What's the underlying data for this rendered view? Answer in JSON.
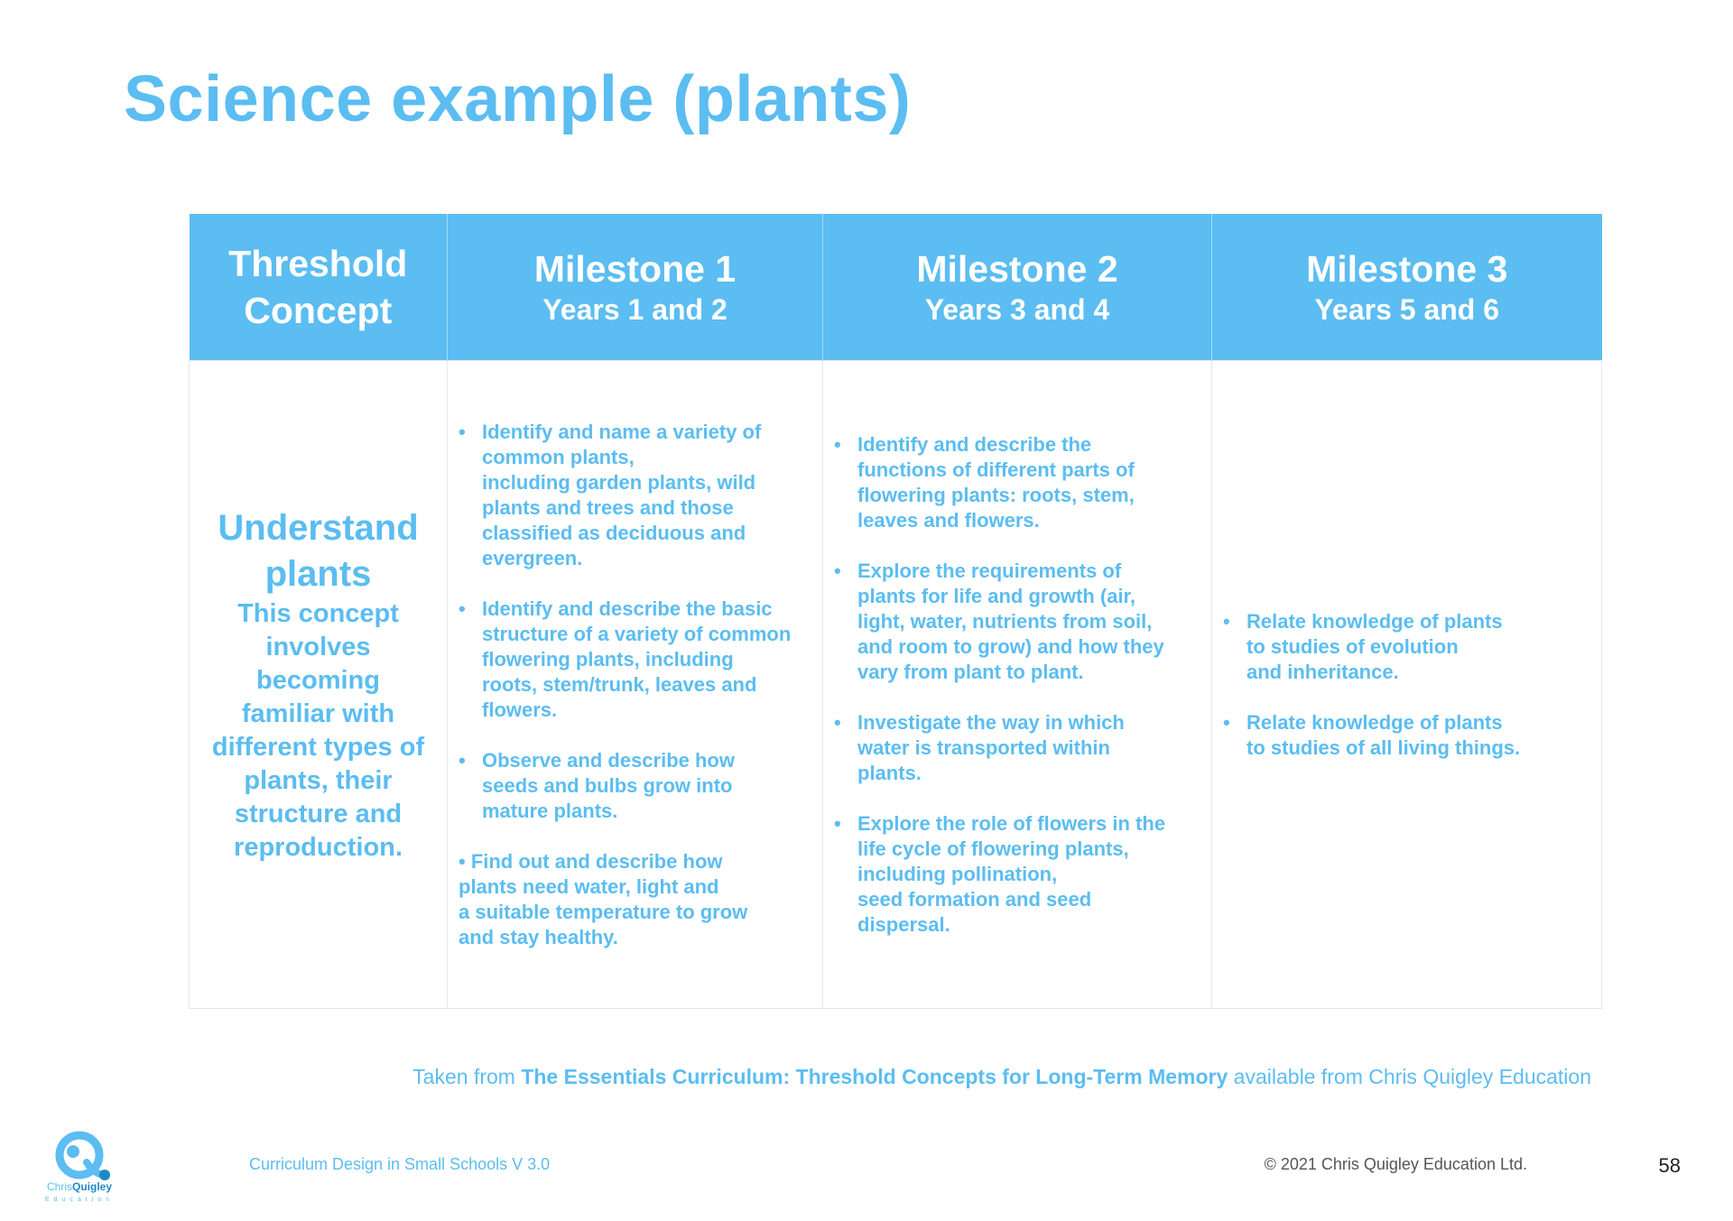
{
  "title": "Science example (plants)",
  "table": {
    "headers": [
      {
        "main": "Threshold",
        "main2": "Concept"
      },
      {
        "main": "Milestone 1",
        "sub": "Years 1 and 2"
      },
      {
        "main": "Milestone 2",
        "sub": "Years 3 and 4"
      },
      {
        "main": "Milestone 3",
        "sub": "Years 5 and 6"
      }
    ],
    "concept": {
      "title_line1": "Understand",
      "title_line2": "plants",
      "desc": [
        "This concept",
        "involves",
        "becoming",
        "familiar with",
        "different types of",
        "plants, their",
        "structure and",
        "reproduction."
      ]
    },
    "milestone1": [
      {
        "bullet": "•",
        "lines": [
          "Identify and name a variety of",
          "common plants,",
          "including garden plants, wild",
          "plants and trees and those",
          "classified as deciduous and",
          "evergreen."
        ]
      },
      {
        "bullet": "•",
        "lines": [
          "Identify and describe the basic",
          "structure of a variety of common",
          "flowering plants, including",
          "roots, stem/trunk, leaves and",
          "flowers."
        ]
      },
      {
        "bullet": "•",
        "lines": [
          "Observe and describe how",
          "seeds and bulbs grow into",
          "mature plants."
        ]
      },
      {
        "bullet": "",
        "lines": [
          "• Find out and describe how",
          "plants need water, light and",
          "a suitable temperature to grow",
          "and stay healthy."
        ]
      }
    ],
    "milestone2": [
      {
        "bullet": "•",
        "lines": [
          "Identify and describe the",
          "functions of different parts of",
          "flowering plants: roots, stem,",
          "leaves and flowers."
        ]
      },
      {
        "bullet": "•",
        "lines": [
          "Explore the requirements of",
          "plants for life and growth (air,",
          "light, water, nutrients from soil,",
          "and room to grow) and how they",
          "vary from plant to plant."
        ]
      },
      {
        "bullet": "•",
        "lines": [
          "Investigate the way in which",
          "water is transported within",
          "plants."
        ]
      },
      {
        "bullet": "•",
        "lines": [
          "Explore the role of flowers in the",
          "life cycle of flowering plants,",
          "including pollination,",
          "seed formation and seed",
          "dispersal."
        ]
      }
    ],
    "milestone3": [
      {
        "bullet": "•",
        "lines": [
          "Relate knowledge of plants",
          "to studies of evolution",
          "and inheritance."
        ]
      },
      {
        "bullet": "•",
        "lines": [
          "Relate knowledge of plants",
          "to studies of all living things."
        ]
      }
    ]
  },
  "source": {
    "prefix": "Taken from ",
    "bold": "The Essentials Curriculum: Threshold Concepts for Long-Term Memory",
    "suffix": " available from Chris Quigley Education"
  },
  "footer": {
    "left": "Curriculum Design in Small Schools V 3.0",
    "right": "© 2021 Chris Quigley Education Ltd.",
    "page_number": "58"
  },
  "logo": {
    "name_part1": "Chris",
    "name_part2": "Quigley",
    "sub": "Education",
    "icon": "chris-quigley-logo-icon"
  },
  "colors": {
    "accent": "#5bbdf1",
    "header_text": "#ffffff",
    "footer_gray": "#555555"
  }
}
